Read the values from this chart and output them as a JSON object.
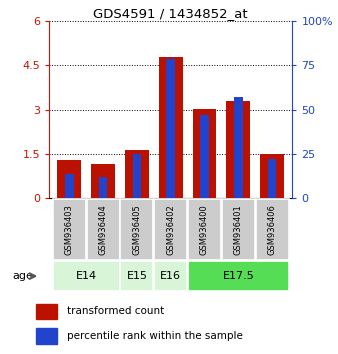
{
  "title": "GDS4591 / 1434852_at",
  "samples": [
    "GSM936403",
    "GSM936404",
    "GSM936405",
    "GSM936402",
    "GSM936400",
    "GSM936401",
    "GSM936406"
  ],
  "transformed_count": [
    1.3,
    1.15,
    1.62,
    4.78,
    3.02,
    3.3,
    1.5
  ],
  "percentile_rank": [
    13.5,
    12.0,
    25.0,
    78.5,
    47.0,
    57.0,
    22.0
  ],
  "ylim_left": [
    0,
    6
  ],
  "ylim_right": [
    0,
    100
  ],
  "yticks_left": [
    0,
    1.5,
    3,
    4.5,
    6
  ],
  "yticks_right": [
    0,
    25,
    50,
    75,
    100
  ],
  "bar_color_red": "#bb1100",
  "bar_color_blue": "#2244cc",
  "bar_width": 0.7,
  "blue_bar_width": 0.25,
  "bg_color": "#ffffff",
  "left_axis_color": "#cc1100",
  "right_axis_color": "#2244cc",
  "group_info": [
    {
      "label": "E14",
      "start": 0,
      "end": 1,
      "color": "#d8f5d8"
    },
    {
      "label": "E15",
      "start": 2,
      "end": 2,
      "color": "#d8f5d8"
    },
    {
      "label": "E16",
      "start": 3,
      "end": 3,
      "color": "#d8f5d8"
    },
    {
      "label": "E17.5",
      "start": 4,
      "end": 6,
      "color": "#55dd55"
    }
  ]
}
